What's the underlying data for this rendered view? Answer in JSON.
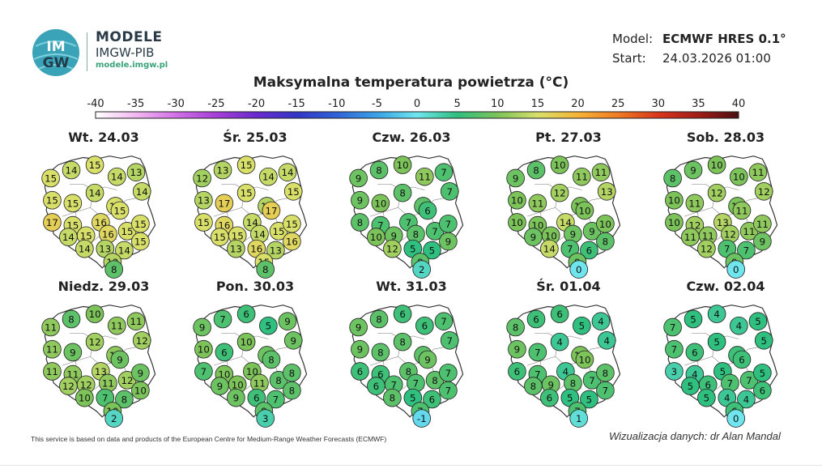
{
  "brand": {
    "name": "MODELE",
    "org": "IMGW-PIB",
    "url": "modele.imgw.pl",
    "logo_top": "IM",
    "logo_bottom": "GW"
  },
  "model_info": {
    "model_label": "Model:",
    "model_value": "ECMWF HRES 0.1°",
    "start_label": "Start:",
    "start_value": "24.03.2026 01:00"
  },
  "title": "Maksymalna temperatura powietrza (°C)",
  "colorbar": {
    "ticks": [
      "-40",
      "-35",
      "-30",
      "-25",
      "-20",
      "-15",
      "-10",
      "-5",
      "0",
      "5",
      "10",
      "15",
      "20",
      "25",
      "30",
      "35",
      "40"
    ],
    "stops": [
      {
        "v": -40,
        "c": "#ffffff"
      },
      {
        "v": -35,
        "c": "#f2b8f0"
      },
      {
        "v": -30,
        "c": "#d270e8"
      },
      {
        "v": -25,
        "c": "#a63fd8"
      },
      {
        "v": -20,
        "c": "#6a2ad0"
      },
      {
        "v": -15,
        "c": "#3335c8"
      },
      {
        "v": -10,
        "c": "#2f62d8"
      },
      {
        "v": -5,
        "c": "#39a2e6"
      },
      {
        "v": 0,
        "c": "#6fe6ee"
      },
      {
        "v": 5,
        "c": "#2fbf7f"
      },
      {
        "v": 10,
        "c": "#7cc35a"
      },
      {
        "v": 15,
        "c": "#d9e06a"
      },
      {
        "v": 20,
        "c": "#f6b436"
      },
      {
        "v": 25,
        "c": "#ef7b24"
      },
      {
        "v": 30,
        "c": "#d9351c"
      },
      {
        "v": 35,
        "c": "#a11c16"
      },
      {
        "v": 40,
        "c": "#4a0f10"
      }
    ]
  },
  "days": [
    {
      "label": "Wt. 24.03",
      "temps": [
        "14",
        "15",
        "13",
        "15",
        "14",
        "14",
        "15",
        "15",
        "14",
        "15",
        "17",
        "15",
        "16",
        "15",
        "14",
        "15",
        "16",
        "15",
        "15",
        "14",
        "13",
        "14",
        "15",
        "13",
        "8"
      ]
    },
    {
      "label": "Śr. 25.03",
      "temps": [
        "13",
        "15",
        "14",
        "12",
        "14",
        "15",
        "13",
        "17",
        "15",
        "13",
        "15",
        "16",
        "14",
        "17",
        "15",
        "15",
        "14",
        "15",
        "15",
        "13",
        "16",
        "13",
        "16",
        "15",
        "8"
      ]
    },
    {
      "label": "Czw. 26.03",
      "temps": [
        "8",
        "10",
        "7",
        "9",
        "11",
        "7",
        "9",
        "10",
        "8",
        "8",
        "8",
        "7",
        "7",
        "6",
        "10",
        "9",
        "8",
        "7",
        "7",
        "12",
        "5",
        "5",
        "9",
        "8",
        "2"
      ]
    },
    {
      "label": "Pt. 27.03",
      "temps": [
        "8",
        "10",
        "11",
        "9",
        "11",
        "13",
        "10",
        "11",
        "12",
        "10",
        "10",
        "10",
        "14",
        "10",
        "9",
        "10",
        "9",
        "9",
        "10",
        "14",
        "7",
        "6",
        "8",
        "9",
        "0"
      ]
    },
    {
      "label": "Sob. 28.03",
      "temps": [
        "9",
        "10",
        "11",
        "8",
        "10",
        "12",
        "10",
        "11",
        "12",
        "10",
        "10",
        "12",
        "13",
        "11",
        "11",
        "11",
        "12",
        "11",
        "11",
        "12",
        "7",
        "7",
        "9",
        "9",
        "0"
      ]
    },
    {
      "label": "Niedz. 29.03",
      "temps": [
        "8",
        "10",
        "11",
        "11",
        "11",
        "12",
        "11",
        "9",
        "12",
        "11",
        "11",
        "11",
        "13",
        "9",
        "12",
        "12",
        "11",
        "12",
        "9",
        "10",
        "7",
        "8",
        "10",
        "10",
        "2"
      ]
    },
    {
      "label": "Pon. 30.03",
      "temps": [
        "7",
        "6",
        "9",
        "9",
        "5",
        "9",
        "10",
        "6",
        "10",
        "9",
        "7",
        "10",
        "10",
        "8",
        "9",
        "10",
        "11",
        "8",
        "8",
        "9",
        "6",
        "7",
        "8",
        "8",
        "3"
      ]
    },
    {
      "label": "Wt. 31.03",
      "temps": [
        "8",
        "6",
        "7",
        "9",
        "6",
        "7",
        "9",
        "8",
        "8",
        "8",
        "6",
        "6",
        "8",
        "9",
        "6",
        "7",
        "7",
        "8",
        "7",
        "8",
        "5",
        "6",
        "7",
        "7",
        "-1"
      ]
    },
    {
      "label": "Śr. 01.04",
      "temps": [
        "6",
        "6",
        "4",
        "8",
        "5",
        "4",
        "9",
        "7",
        "4",
        "10",
        "6",
        "7",
        "4",
        "10",
        "8",
        "9",
        "8",
        "7",
        "8",
        "6",
        "5",
        "5",
        "7",
        "7",
        "1"
      ]
    },
    {
      "label": "Czw. 02.04",
      "temps": [
        "5",
        "4",
        "5",
        "7",
        "4",
        "5",
        "7",
        "6",
        "5",
        "6",
        "3",
        "4",
        "5",
        "6",
        "5",
        "6",
        "7",
        "7",
        "5",
        "5",
        "4",
        "4",
        "6",
        "6",
        "0"
      ]
    }
  ],
  "footer": "This service is based on data and products of the European Centre for Medium-Range Weather Forecasts (ECMWF)",
  "credit": "Wizualizacja danych: dr Alan Mandal"
}
